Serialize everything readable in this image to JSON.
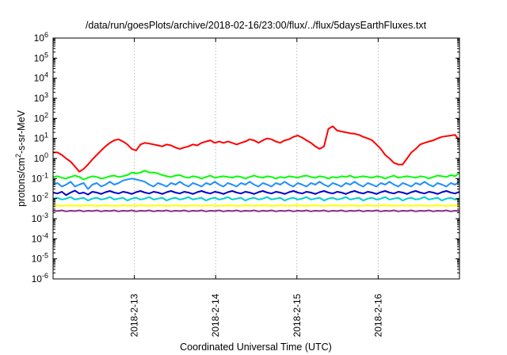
{
  "chart_data": {
    "type": "line",
    "title": "/data/run/goesPlots/archive/2018-02-16/23:00/flux/../flux/5daysEarthFluxes.txt",
    "xlabel": "Coordinated Universal Time (UTC)",
    "ylabel": {
      "base": "protons/cm",
      "sup": "2",
      "rest": "-s-sr-MeV"
    },
    "yscale": "log",
    "ylim": [
      1e-06,
      1000000.0
    ],
    "xlim": [
      0,
      5
    ],
    "grid": true,
    "legend": "none",
    "y_ticks": [
      {
        "value": 1e-06,
        "base": "10",
        "exp": "-6"
      },
      {
        "value": 1e-05,
        "base": "10",
        "exp": "-5"
      },
      {
        "value": 0.0001,
        "base": "10",
        "exp": "-4"
      },
      {
        "value": 0.001,
        "base": "10",
        "exp": "-3"
      },
      {
        "value": 0.01,
        "base": "10",
        "exp": "-2"
      },
      {
        "value": 0.1,
        "base": "10",
        "exp": "-1"
      },
      {
        "value": 1,
        "base": "10",
        "exp": "0"
      },
      {
        "value": 10,
        "base": "10",
        "exp": "1"
      },
      {
        "value": 100,
        "base": "10",
        "exp": "2"
      },
      {
        "value": 1000,
        "base": "10",
        "exp": "3"
      },
      {
        "value": 10000,
        "base": "10",
        "exp": "4"
      },
      {
        "value": 100000,
        "base": "10",
        "exp": "5"
      },
      {
        "value": 1000000,
        "base": "10",
        "exp": "6"
      }
    ],
    "x_ticks": [
      {
        "value": 1,
        "label": "2018-2-13"
      },
      {
        "value": 2,
        "label": "2018-2-14"
      },
      {
        "value": 3,
        "label": "2018-2-15"
      },
      {
        "value": 4,
        "label": "2018-2-16"
      }
    ],
    "series": [
      {
        "color": "#ff0000",
        "values": [
          2,
          2,
          1.5,
          1,
          0.7,
          0.4,
          0.22,
          0.3,
          0.5,
          0.9,
          1.5,
          2.5,
          4,
          6,
          8,
          9,
          7,
          5,
          3,
          2.5,
          5,
          6,
          5.5,
          5,
          4.5,
          4,
          5,
          4.5,
          3.5,
          3,
          3.5,
          4,
          5,
          4.5,
          6,
          7,
          8,
          6,
          7,
          6,
          7,
          6,
          5,
          6,
          7,
          9,
          8,
          6,
          8,
          10,
          9,
          7,
          6,
          8,
          9,
          12,
          14,
          11,
          8,
          6,
          4,
          3,
          4,
          30,
          40,
          25,
          22,
          20,
          18,
          17,
          15,
          12,
          10,
          8,
          5,
          3,
          1.5,
          1,
          0.6,
          0.5,
          0.5,
          1,
          2,
          3,
          5,
          6,
          7,
          8,
          10,
          12,
          13,
          14,
          15,
          8
        ]
      },
      {
        "color": "#00ff00",
        "values": [
          0.12,
          0.13,
          0.11,
          0.1,
          0.12,
          0.14,
          0.12,
          0.09,
          0.11,
          0.13,
          0.12,
          0.1,
          0.11,
          0.13,
          0.14,
          0.12,
          0.13,
          0.15,
          0.2,
          0.18,
          0.2,
          0.25,
          0.2,
          0.2,
          0.18,
          0.15,
          0.13,
          0.12,
          0.14,
          0.15,
          0.12,
          0.11,
          0.13,
          0.12,
          0.1,
          0.12,
          0.14,
          0.11,
          0.12,
          0.13,
          0.12,
          0.11,
          0.13,
          0.12,
          0.1,
          0.12,
          0.14,
          0.12,
          0.11,
          0.13,
          0.12,
          0.1,
          0.12,
          0.11,
          0.13,
          0.12,
          0.11,
          0.13,
          0.14,
          0.12,
          0.11,
          0.13,
          0.12,
          0.1,
          0.12,
          0.11,
          0.13,
          0.12,
          0.14,
          0.11,
          0.12,
          0.13,
          0.12,
          0.11,
          0.13,
          0.12,
          0.1,
          0.12,
          0.14,
          0.11,
          0.12,
          0.13,
          0.12,
          0.11,
          0.13,
          0.12,
          0.1,
          0.12,
          0.14,
          0.13,
          0.12,
          0.15,
          0.13,
          0.2
        ]
      },
      {
        "color": "#1e90ff",
        "values": [
          0.05,
          0.06,
          0.04,
          0.05,
          0.07,
          0.04,
          0.05,
          0.06,
          0.03,
          0.05,
          0.06,
          0.04,
          0.05,
          0.07,
          0.05,
          0.06,
          0.08,
          0.09,
          0.1,
          0.09,
          0.08,
          0.07,
          0.05,
          0.04,
          0.06,
          0.05,
          0.04,
          0.06,
          0.05,
          0.07,
          0.05,
          0.04,
          0.06,
          0.05,
          0.04,
          0.06,
          0.05,
          0.07,
          0.05,
          0.04,
          0.06,
          0.05,
          0.04,
          0.06,
          0.05,
          0.07,
          0.05,
          0.04,
          0.06,
          0.05,
          0.04,
          0.06,
          0.05,
          0.07,
          0.05,
          0.04,
          0.06,
          0.05,
          0.04,
          0.06,
          0.05,
          0.07,
          0.05,
          0.04,
          0.06,
          0.05,
          0.04,
          0.06,
          0.05,
          0.07,
          0.05,
          0.04,
          0.06,
          0.05,
          0.04,
          0.06,
          0.05,
          0.07,
          0.05,
          0.04,
          0.06,
          0.05,
          0.04,
          0.06,
          0.05,
          0.07,
          0.05,
          0.04,
          0.06,
          0.05,
          0.04,
          0.06,
          0.05,
          0.07
        ]
      },
      {
        "color": "#0000cd",
        "values": [
          0.02,
          0.018,
          0.022,
          0.015,
          0.02,
          0.025,
          0.018,
          0.02,
          0.016,
          0.022,
          0.02,
          0.017,
          0.021,
          0.024,
          0.02,
          0.018,
          0.022,
          0.02,
          0.017,
          0.021,
          0.024,
          0.02,
          0.018,
          0.022,
          0.02,
          0.017,
          0.021,
          0.024,
          0.02,
          0.018,
          0.022,
          0.02,
          0.017,
          0.021,
          0.024,
          0.02,
          0.018,
          0.022,
          0.02,
          0.017,
          0.021,
          0.024,
          0.02,
          0.018,
          0.022,
          0.02,
          0.017,
          0.021,
          0.024,
          0.02,
          0.018,
          0.022,
          0.02,
          0.017,
          0.021,
          0.024,
          0.02,
          0.018,
          0.022,
          0.02,
          0.017,
          0.021,
          0.024,
          0.02,
          0.018,
          0.022,
          0.02,
          0.017,
          0.021,
          0.024,
          0.02,
          0.018,
          0.022,
          0.02,
          0.017,
          0.021,
          0.024,
          0.02,
          0.018,
          0.022,
          0.02,
          0.017,
          0.021,
          0.024,
          0.02,
          0.018,
          0.022,
          0.02,
          0.017,
          0.021,
          0.024,
          0.02,
          0.018,
          0.022
        ]
      },
      {
        "color": "#00ced1",
        "values": [
          0.01,
          0.011,
          0.009,
          0.01,
          0.012,
          0.009,
          0.01,
          0.011,
          0.008,
          0.01,
          0.011,
          0.009,
          0.01,
          0.012,
          0.009,
          0.01,
          0.011,
          0.008,
          0.01,
          0.011,
          0.009,
          0.01,
          0.012,
          0.009,
          0.01,
          0.011,
          0.008,
          0.01,
          0.011,
          0.009,
          0.01,
          0.012,
          0.009,
          0.01,
          0.011,
          0.008,
          0.01,
          0.011,
          0.009,
          0.01,
          0.012,
          0.009,
          0.01,
          0.011,
          0.008,
          0.01,
          0.011,
          0.009,
          0.01,
          0.012,
          0.009,
          0.01,
          0.011,
          0.008,
          0.01,
          0.011,
          0.009,
          0.01,
          0.012,
          0.009,
          0.01,
          0.011,
          0.008,
          0.01,
          0.011,
          0.009,
          0.01,
          0.012,
          0.009,
          0.01,
          0.011,
          0.008,
          0.01,
          0.011,
          0.009,
          0.01,
          0.012,
          0.009,
          0.01,
          0.011,
          0.008,
          0.01,
          0.011,
          0.009,
          0.01,
          0.012,
          0.009,
          0.01,
          0.011,
          0.008,
          0.01,
          0.011,
          0.009,
          0.01
        ]
      },
      {
        "color": "#ffff00",
        "values": [
          0.0045,
          0.0045,
          0.0044,
          0.0045,
          0.0046,
          0.0045,
          0.0044,
          0.0045,
          0.0046,
          0.0045,
          0.0044,
          0.0045,
          0.0046,
          0.0045,
          0.0044,
          0.0045,
          0.0046,
          0.0045,
          0.0044,
          0.0045,
          0.0046,
          0.0045,
          0.0044,
          0.0045,
          0.0046,
          0.0045,
          0.0044,
          0.0045,
          0.0046,
          0.0045,
          0.0044,
          0.0045,
          0.0046,
          0.0045,
          0.0044,
          0.0045,
          0.0046,
          0.0045,
          0.0044,
          0.0045,
          0.0046,
          0.0045,
          0.0044,
          0.0045,
          0.0046,
          0.0045,
          0.0044,
          0.0045,
          0.0046,
          0.0045,
          0.0044,
          0.0045,
          0.0046,
          0.0045,
          0.0044,
          0.0045,
          0.0046,
          0.0045,
          0.0044,
          0.0045,
          0.0046,
          0.0045,
          0.0044,
          0.0045,
          0.0046,
          0.0045,
          0.0044,
          0.0045,
          0.0046,
          0.0045,
          0.0044,
          0.0045,
          0.0046,
          0.0045,
          0.0044,
          0.0045,
          0.0046,
          0.0045,
          0.0044,
          0.0045,
          0.0046,
          0.0045,
          0.0044,
          0.0045,
          0.0046,
          0.0045,
          0.0044,
          0.0045,
          0.0046,
          0.0045,
          0.0044,
          0.0045,
          0.0046,
          0.0045
        ]
      },
      {
        "color": "#8b2c8b",
        "values": [
          0.0025,
          0.0024,
          0.0026,
          0.0023,
          0.0025,
          0.0024,
          0.0026,
          0.0023,
          0.0025,
          0.0024,
          0.0026,
          0.0023,
          0.0025,
          0.0024,
          0.0026,
          0.0023,
          0.0025,
          0.0024,
          0.0026,
          0.0023,
          0.0025,
          0.0024,
          0.0026,
          0.0023,
          0.0025,
          0.0024,
          0.0026,
          0.0023,
          0.0025,
          0.0024,
          0.0026,
          0.0023,
          0.0025,
          0.0024,
          0.0026,
          0.0023,
          0.0025,
          0.0024,
          0.0026,
          0.0023,
          0.0025,
          0.0024,
          0.0026,
          0.0023,
          0.0025,
          0.0024,
          0.0026,
          0.0023,
          0.0025,
          0.0024,
          0.0026,
          0.0023,
          0.0025,
          0.0024,
          0.0026,
          0.0023,
          0.0025,
          0.0024,
          0.0026,
          0.0023,
          0.0025,
          0.0024,
          0.0026,
          0.0023,
          0.0025,
          0.0024,
          0.0026,
          0.0023,
          0.0025,
          0.0024,
          0.0026,
          0.0023,
          0.0025,
          0.0024,
          0.0026,
          0.0023,
          0.0025,
          0.0024,
          0.0026,
          0.0023,
          0.0025,
          0.0024,
          0.0026,
          0.0023,
          0.0025,
          0.0024,
          0.0026,
          0.0023,
          0.0025,
          0.0024,
          0.0026,
          0.0023,
          0.0025,
          0.0024
        ]
      }
    ]
  }
}
